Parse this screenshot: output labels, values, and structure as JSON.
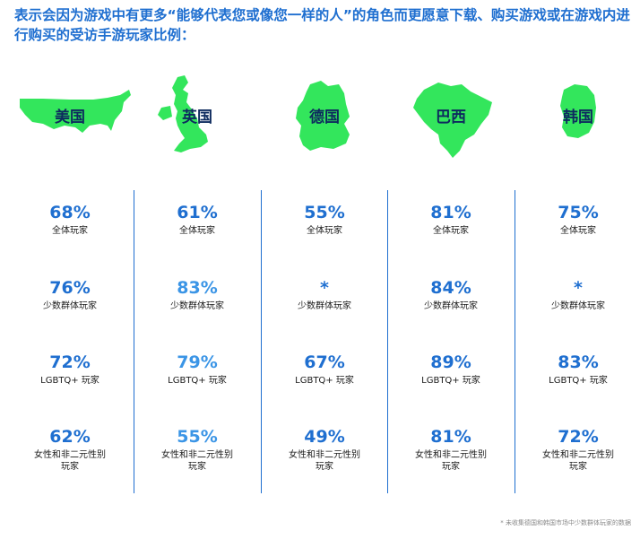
{
  "title": "表示会因为游戏中有更多“能够代表您或像您一样的人”的角色而更愿意下载、购买游戏或在游戏内进行购买的受访手游玩家比例：",
  "accent_color": "#1f6fd0",
  "map_color": "#33e65c",
  "countries": [
    {
      "name": "美国",
      "map_icon": "usa-map-icon",
      "stats": [
        {
          "value": "68%",
          "label": "全体玩家"
        },
        {
          "value": "76%",
          "label": "少数群体玩家"
        },
        {
          "value": "72%",
          "label": "LGBTQ+ 玩家"
        },
        {
          "value": "62%",
          "label": "女性和非二元性别\n玩家"
        }
      ]
    },
    {
      "name": "英国",
      "map_icon": "uk-map-icon",
      "stats": [
        {
          "value": "61%",
          "label": "全体玩家"
        },
        {
          "value": "83%",
          "label": "少数群体玩家"
        },
        {
          "value": "79%",
          "label": "LGBTQ+ 玩家"
        },
        {
          "value": "55%",
          "label": "女性和非二元性别\n玩家"
        }
      ]
    },
    {
      "name": "德国",
      "map_icon": "germany-map-icon",
      "stats": [
        {
          "value": "55%",
          "label": "全体玩家"
        },
        {
          "value": "*",
          "label": "少数群体玩家"
        },
        {
          "value": "67%",
          "label": "LGBTQ+ 玩家"
        },
        {
          "value": "49%",
          "label": "女性和非二元性别\n玩家"
        }
      ]
    },
    {
      "name": "巴西",
      "map_icon": "brazil-map-icon",
      "stats": [
        {
          "value": "81%",
          "label": "全体玩家"
        },
        {
          "value": "84%",
          "label": "少数群体玩家"
        },
        {
          "value": "89%",
          "label": "LGBTQ+ 玩家"
        },
        {
          "value": "81%",
          "label": "女性和非二元性别\n玩家"
        }
      ]
    },
    {
      "name": "韩国",
      "map_icon": "korea-map-icon",
      "stats": [
        {
          "value": "75%",
          "label": "全体玩家"
        },
        {
          "value": "*",
          "label": "少数群体玩家"
        },
        {
          "value": "83%",
          "label": "LGBTQ+ 玩家"
        },
        {
          "value": "72%",
          "label": "女性和非二元性别\n玩家"
        }
      ]
    }
  ],
  "footnote": "* 未收集德国和韩国市场中少数群体玩家的数据",
  "chart_data": {
    "type": "table",
    "title": "表示会因为游戏中有更多“能够代表您或像您一样的人”的角色而更愿意下载、购买游戏或在游戏内进行购买的受访手游玩家比例：",
    "columns": [
      "美国",
      "英国",
      "德国",
      "巴西",
      "韩国"
    ],
    "rows": [
      "全体玩家",
      "少数群体玩家",
      "LGBTQ+ 玩家",
      "女性和非二元性别玩家"
    ],
    "values": [
      [
        "68%",
        "61%",
        "55%",
        "81%",
        "75%"
      ],
      [
        "76%",
        "83%",
        "*",
        "84%",
        "*"
      ],
      [
        "72%",
        "79%",
        "67%",
        "89%",
        "83%"
      ],
      [
        "62%",
        "55%",
        "49%",
        "81%",
        "72%"
      ]
    ]
  }
}
